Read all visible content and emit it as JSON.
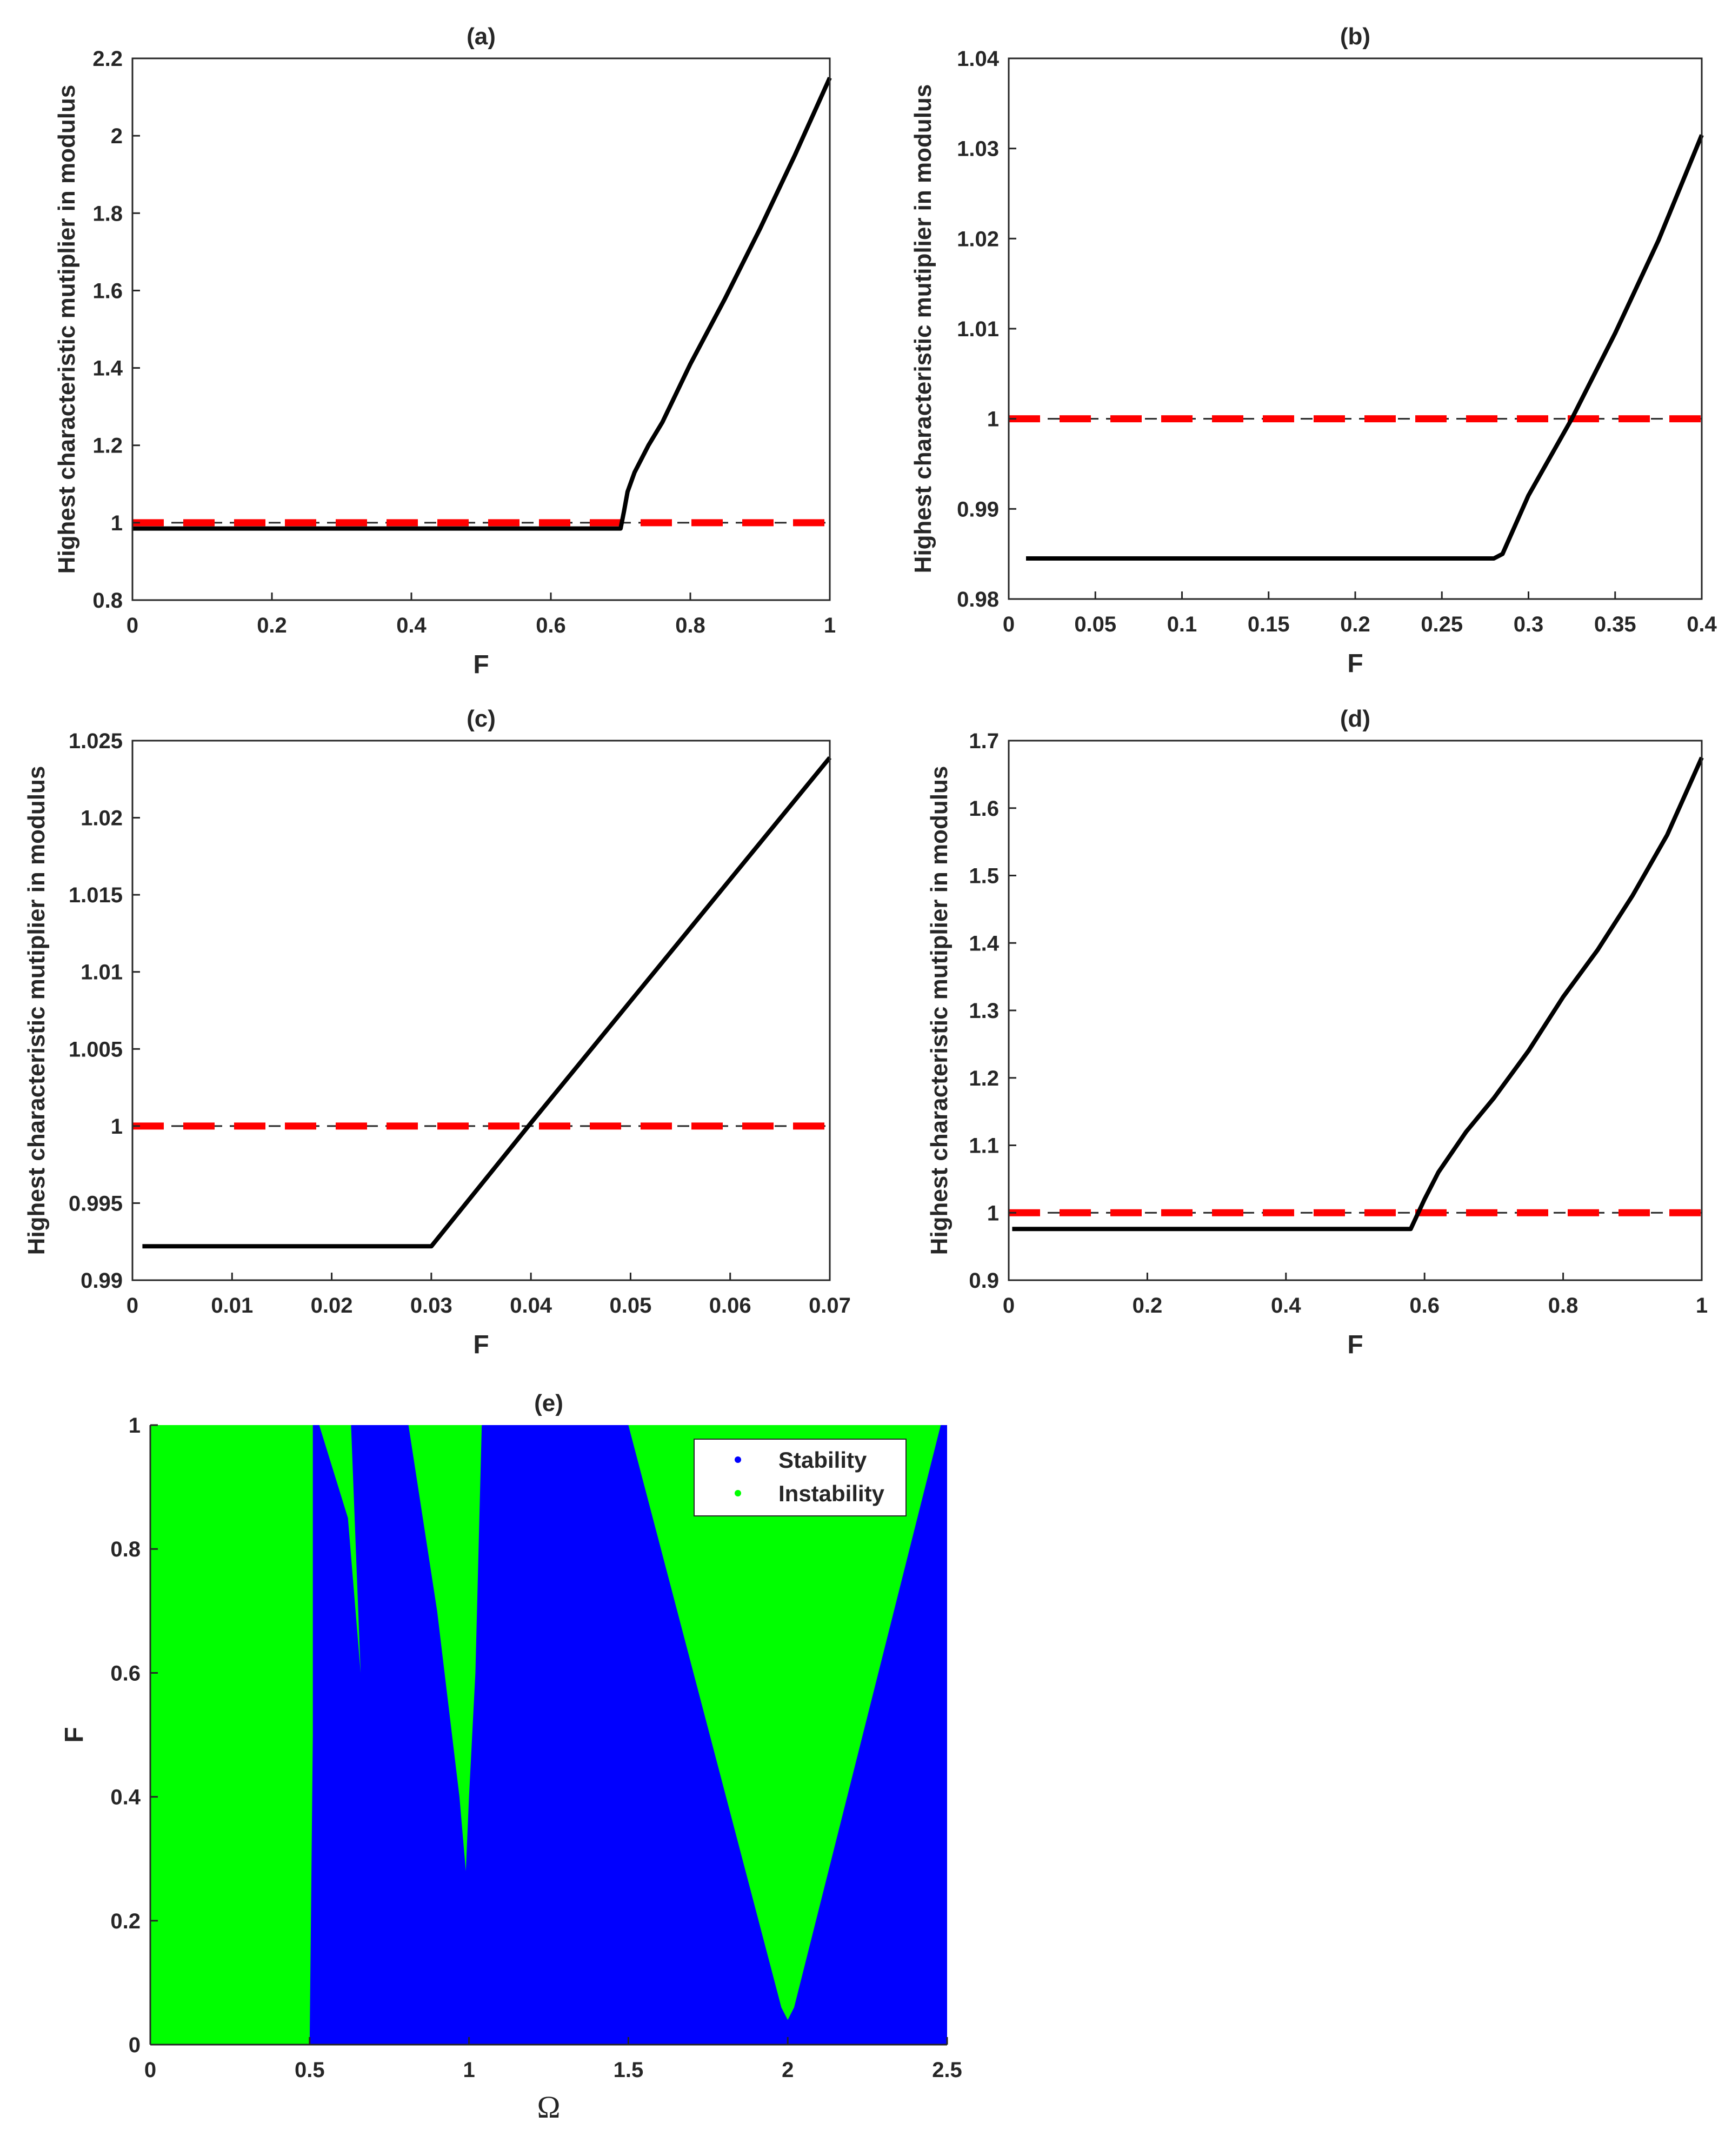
{
  "chart_data": [
    {
      "type": "line",
      "panel": "(a)",
      "title": "(a)",
      "xlabel": "F",
      "ylabel": "Highest characteristic mutiplier in modulus",
      "xlim": [
        0,
        1
      ],
      "ylim": [
        0.8,
        2.2
      ],
      "xticks": [
        "0",
        "0.2",
        "0.4",
        "0.6",
        "0.8",
        "1"
      ],
      "yticks": [
        "0.8",
        "1",
        "1.2",
        "1.4",
        "1.6",
        "1.8",
        "2",
        "2.2"
      ],
      "series": [
        {
          "x": [
            0,
            0.2,
            0.4,
            0.6,
            0.7,
            0.705,
            0.71,
            0.72,
            0.74,
            0.76,
            0.8,
            0.85,
            0.9,
            0.95,
            1.0
          ],
          "y": [
            0.985,
            0.985,
            0.985,
            0.985,
            0.985,
            1.03,
            1.08,
            1.13,
            1.2,
            1.26,
            1.41,
            1.58,
            1.76,
            1.95,
            2.15
          ]
        }
      ],
      "reference_line": {
        "y": 1,
        "color": "#ff0000"
      }
    },
    {
      "type": "line",
      "panel": "(b)",
      "title": "(b)",
      "xlabel": "F",
      "ylabel": "Highest characteristic mutiplier in modulus",
      "xlim": [
        0,
        0.4
      ],
      "ylim": [
        0.98,
        1.04
      ],
      "xticks": [
        "0",
        "0.05",
        "0.1",
        "0.15",
        "0.2",
        "0.25",
        "0.3",
        "0.35",
        "0.4"
      ],
      "yticks": [
        "0.98",
        "0.99",
        "1",
        "1.01",
        "1.02",
        "1.03",
        "1.04"
      ],
      "series": [
        {
          "x": [
            0.01,
            0.1,
            0.2,
            0.28,
            0.285,
            0.3,
            0.325,
            0.35,
            0.375,
            0.4
          ],
          "y": [
            0.9845,
            0.9845,
            0.9845,
            0.9845,
            0.985,
            0.9915,
            1.0,
            1.0095,
            1.0198,
            1.0315
          ]
        }
      ],
      "reference_line": {
        "y": 1,
        "color": "#ff0000"
      }
    },
    {
      "type": "line",
      "panel": "(c)",
      "title": "(c)",
      "xlabel": "F",
      "ylabel": "Highest characteristic mutiplier in modulus",
      "xlim": [
        0,
        0.07
      ],
      "ylim": [
        0.99,
        1.025
      ],
      "xticks": [
        "0",
        "0.01",
        "0.02",
        "0.03",
        "0.04",
        "0.05",
        "0.06",
        "0.07"
      ],
      "yticks": [
        "0.99",
        "0.995",
        "1",
        "1.005",
        "1.01",
        "1.015",
        "1.02",
        "1.025"
      ],
      "series": [
        {
          "x": [
            0.001,
            0.01,
            0.02,
            0.03,
            0.04,
            0.05,
            0.06,
            0.07
          ],
          "y": [
            0.9922,
            0.9922,
            0.9922,
            0.9922,
            1.0002,
            1.0081,
            1.016,
            1.0239
          ]
        }
      ],
      "reference_line": {
        "y": 1,
        "color": "#ff0000"
      }
    },
    {
      "type": "line",
      "panel": "(d)",
      "title": "(d)",
      "xlabel": "F",
      "ylabel": "Highest characteristic mutiplier in modulus",
      "xlim": [
        0,
        1
      ],
      "ylim": [
        0.9,
        1.7
      ],
      "xticks": [
        "0",
        "0.2",
        "0.4",
        "0.6",
        "0.8",
        "1"
      ],
      "yticks": [
        "0.9",
        "1",
        "1.1",
        "1.2",
        "1.3",
        "1.4",
        "1.5",
        "1.6",
        "1.7"
      ],
      "series": [
        {
          "x": [
            0.005,
            0.2,
            0.4,
            0.58,
            0.6,
            0.62,
            0.66,
            0.7,
            0.75,
            0.8,
            0.85,
            0.9,
            0.95,
            1.0
          ],
          "y": [
            0.976,
            0.976,
            0.976,
            0.976,
            1.02,
            1.06,
            1.12,
            1.17,
            1.24,
            1.32,
            1.39,
            1.47,
            1.56,
            1.675
          ]
        }
      ],
      "reference_line": {
        "y": 1,
        "color": "#ff0000"
      }
    },
    {
      "type": "heatmap",
      "panel": "(e)",
      "title": "(e)",
      "xlabel": "Ω",
      "ylabel": "F",
      "xlim": [
        0,
        2.5
      ],
      "ylim": [
        0,
        1
      ],
      "xticks": [
        "0",
        "0.5",
        "1",
        "1.5",
        "2",
        "2.5"
      ],
      "yticks": [
        "0",
        "0.2",
        "0.4",
        "0.6",
        "0.8",
        "1"
      ],
      "legend": {
        "placement": "top-right",
        "entries": [
          {
            "label": "Stability",
            "color": "#0000ff"
          },
          {
            "label": "Instability",
            "color": "#00ff00"
          }
        ]
      },
      "background_region": "Stability",
      "instability_regions": [
        {
          "omega": [
            0,
            0.5,
            0.51,
            0.51,
            0,
            0
          ],
          "F": [
            0,
            0,
            0.5,
            1,
            1,
            0
          ]
        },
        {
          "omega": [
            0.53,
            0.63,
            0.66,
            0.67,
            0.66,
            0.62
          ],
          "F": [
            1,
            1,
            0.6,
            0.5,
            0.6,
            0.85
          ]
        },
        {
          "omega": [
            0.81,
            1.04,
            1.02,
            1.0,
            0.99,
            0.97,
            0.9
          ],
          "F": [
            1,
            1,
            0.6,
            0.4,
            0.28,
            0.4,
            0.7
          ]
        },
        {
          "omega": [
            1.5,
            2.48,
            2.02,
            2.0,
            1.98
          ],
          "F": [
            1,
            1,
            0.06,
            0.04,
            0.06
          ]
        }
      ]
    }
  ]
}
